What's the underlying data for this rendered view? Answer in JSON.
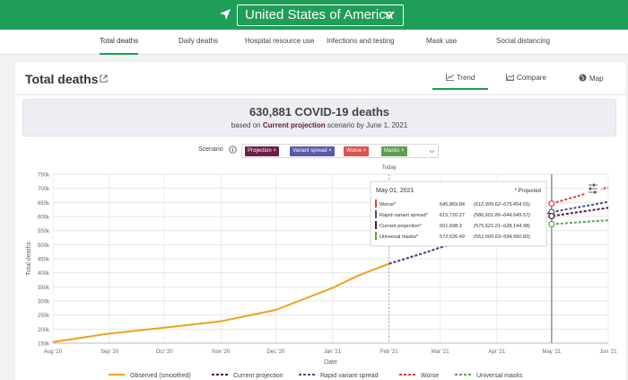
{
  "header": {
    "country": "United States of America",
    "location_icon": "navigation-arrow-icon",
    "chevron_icon": "chevron-down-icon"
  },
  "nav_tabs": [
    {
      "label": "Total deaths",
      "active": true
    },
    {
      "label": "Daily deaths",
      "active": false
    },
    {
      "label": "Hospital resource use",
      "active": false
    },
    {
      "label": "Infections and testing",
      "active": false
    },
    {
      "label": "Mask use",
      "active": false
    },
    {
      "label": "Social distancing",
      "active": false
    }
  ],
  "panel": {
    "title": "Total deaths",
    "view_tabs": [
      {
        "label": "Trend",
        "icon": "line-chart-icon",
        "active": true
      },
      {
        "label": "Compare",
        "icon": "area-chart-icon",
        "active": false
      },
      {
        "label": "Map",
        "icon": "globe-icon",
        "active": false
      }
    ]
  },
  "summary": {
    "headline": "630,881 COVID-19 deaths",
    "sub_prefix": "based on",
    "sub_scenario": "Current projection",
    "sub_suffix": "scenario by June 1, 2021"
  },
  "scenario": {
    "label": "Scenario",
    "chips": [
      {
        "label": "Projection ×",
        "color": "#6b1d45"
      },
      {
        "label": "Variant spread ×",
        "color": "#5a58a8"
      },
      {
        "label": "Worse ×",
        "color": "#d9534f"
      },
      {
        "label": "Masks ×",
        "color": "#5e9e4f"
      }
    ]
  },
  "chart_data": {
    "type": "line",
    "xlabel": "Date",
    "ylabel": "Total deaths",
    "x_ticks": [
      "Aug '20",
      "Sep '20",
      "Oct '20",
      "Nov '20",
      "Dec '20",
      "Jan '21",
      "Feb '21",
      "Mar '21",
      "Apr '21",
      "May '21",
      "Jun '21"
    ],
    "y_ticks": [
      "150k",
      "200k",
      "250k",
      "300k",
      "350k",
      "400k",
      "450k",
      "500k",
      "550k",
      "600k",
      "650k",
      "700k",
      "750k"
    ],
    "ylim": [
      150000,
      750000
    ],
    "today_label": "Today",
    "today_x": "2021-02-01",
    "grid": true,
    "series": [
      {
        "name": "Observed (smoothed)",
        "color": "#f0a11a",
        "dash": false,
        "points": [
          [
            "2020-08-01",
            154000
          ],
          [
            "2020-09-01",
            184000
          ],
          [
            "2020-10-01",
            205000
          ],
          [
            "2020-11-01",
            228000
          ],
          [
            "2020-12-01",
            268000
          ],
          [
            "2020-12-20",
            316000
          ],
          [
            "2021-01-01",
            346000
          ],
          [
            "2021-01-15",
            390000
          ],
          [
            "2021-02-01",
            432000
          ]
        ]
      },
      {
        "name": "Current projection",
        "color": "#4b1d3b",
        "dash": true,
        "points": [
          [
            "2021-02-01",
            432000
          ],
          [
            "2021-02-20",
            470000
          ],
          [
            "2021-03-01",
            490000
          ],
          [
            "2021-05-01",
            601698
          ],
          [
            "2021-06-01",
            630881
          ]
        ]
      },
      {
        "name": "Rapid variant spread",
        "color": "#4a4a8e",
        "dash": true,
        "points": [
          [
            "2021-02-01",
            432000
          ],
          [
            "2021-02-20",
            470000
          ],
          [
            "2021-03-01",
            490000
          ],
          [
            "2021-05-01",
            615720
          ],
          [
            "2021-06-01",
            652000
          ]
        ]
      },
      {
        "name": "Worse",
        "color": "#e03b3b",
        "dash": true,
        "points": [
          [
            "2021-05-01",
            645870
          ],
          [
            "2021-06-01",
            704000
          ]
        ]
      },
      {
        "name": "Universal masks",
        "color": "#5fa04f",
        "dash": true,
        "points": [
          [
            "2021-05-01",
            572526
          ],
          [
            "2021-06-01",
            587000
          ]
        ]
      }
    ],
    "tooltip": {
      "date": "May 01, 2021",
      "note": "* Projected",
      "rows": [
        {
          "label": "Worse*",
          "value": "645,869.84",
          "range": "(612,995.62–675,454.55)",
          "color": "#e03b3b"
        },
        {
          "label": "Rapid variant spread*",
          "value": "615,720.27",
          "range": "(586,601.86–644,649.57)",
          "color": "#4a4a8e"
        },
        {
          "label": "Current projection*",
          "value": "601,698.3",
          "range": "(575,621.21–628,144.98)",
          "color": "#4b1d3b"
        },
        {
          "label": "Universal masks*",
          "value": "572,526.49",
          "range": "(551,500.63–594,560.82)",
          "color": "#5fa04f"
        }
      ]
    }
  }
}
